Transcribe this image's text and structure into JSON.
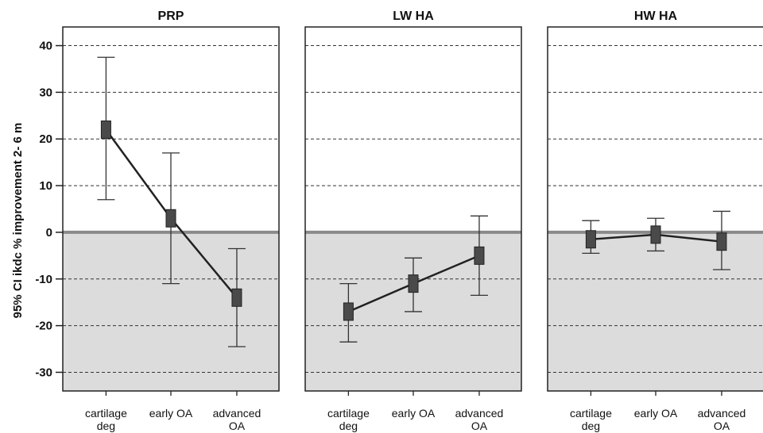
{
  "chart_data": {
    "type": "line",
    "ylabel": "95% CI ikdc % improvement 2- 6 m",
    "ylim": [
      -34,
      44
    ],
    "yticks": [
      "40",
      "30",
      "20",
      "10",
      "0",
      "-10",
      "-20",
      "-30"
    ],
    "categories": [
      {
        "line1": "cartilage",
        "line2": "deg"
      },
      {
        "line1": "early OA",
        "line2": ""
      },
      {
        "line1": "advanced",
        "line2": "OA"
      }
    ],
    "grid": "dashed horizontal",
    "reference_line": 0,
    "panels": [
      {
        "title": "PRP",
        "points": [
          {
            "mean": 22,
            "lower": 7,
            "upper": 37.5
          },
          {
            "mean": 3,
            "lower": -11,
            "upper": 17
          },
          {
            "mean": -14,
            "lower": -24.5,
            "upper": -3.5
          }
        ]
      },
      {
        "title": "LW HA",
        "points": [
          {
            "mean": -17,
            "lower": -23.5,
            "upper": -11
          },
          {
            "mean": -11,
            "lower": -17,
            "upper": -5.5
          },
          {
            "mean": -5,
            "lower": -13.5,
            "upper": 3.5
          }
        ]
      },
      {
        "title": "HW HA",
        "points": [
          {
            "mean": -1.5,
            "lower": -4.5,
            "upper": 2.5
          },
          {
            "mean": -0.5,
            "lower": -4,
            "upper": 3
          },
          {
            "mean": -2,
            "lower": -8,
            "upper": 4.5
          }
        ]
      }
    ],
    "colors": {
      "negative_region": "#dcdcdc",
      "zero_line": "#8a8a8a",
      "marker": "#4a4a4a",
      "line": "#222222",
      "grid": "#333333"
    }
  }
}
